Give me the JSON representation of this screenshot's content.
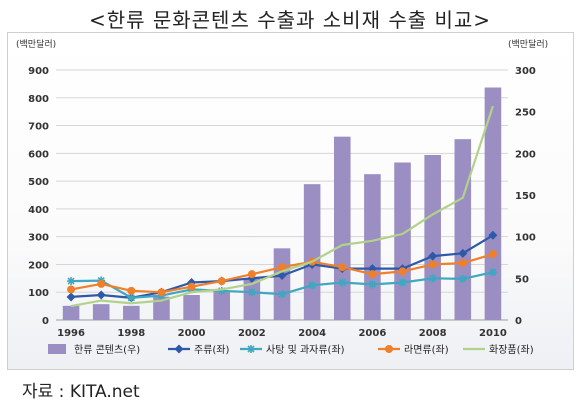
{
  "title": "<한류 문화콘텐츠 수출과 소비재 수출 비교>",
  "source": "자료 : KITA.net",
  "chart_data": {
    "type": "bar+line",
    "left_axis_unit": "(백만달러)",
    "right_axis_unit": "(백만달러)",
    "left_ylim": [
      0,
      900
    ],
    "left_yticks": [
      0,
      100,
      200,
      300,
      400,
      500,
      600,
      700,
      800,
      900
    ],
    "right_ylim": [
      0,
      300
    ],
    "right_yticks": [
      0,
      50,
      100,
      150,
      200,
      250,
      300
    ],
    "x": [
      1996,
      1997,
      1998,
      1999,
      2000,
      2001,
      2002,
      2003,
      2004,
      2005,
      2006,
      2007,
      2008,
      2009,
      2010
    ],
    "x_tick_labels": [
      "1996",
      "1998",
      "2000",
      "2002",
      "2004",
      "2006",
      "2008",
      "2010"
    ],
    "grid": true,
    "legend_position": "bottom",
    "series": [
      {
        "name": "한류 콘텐츠(우)",
        "type": "bar",
        "axis": "right",
        "color": "#9b8ec2",
        "values": [
          17,
          19,
          17,
          28,
          30,
          35,
          50,
          86,
          163,
          220,
          175,
          189,
          198,
          217,
          279
        ]
      },
      {
        "name": "주류(좌)",
        "type": "line",
        "axis": "left",
        "color": "#2e58a8",
        "marker": "diamond",
        "values": [
          83,
          90,
          80,
          100,
          135,
          140,
          150,
          160,
          200,
          185,
          185,
          185,
          230,
          240,
          305
        ]
      },
      {
        "name": "사탕 및 과자류(좌)",
        "type": "line",
        "axis": "left",
        "color": "#3fa7c0",
        "marker": "star",
        "values": [
          140,
          142,
          80,
          88,
          110,
          105,
          100,
          93,
          125,
          135,
          128,
          135,
          150,
          148,
          172
        ]
      },
      {
        "name": "라면류(좌)",
        "type": "line",
        "axis": "left",
        "color": "#f07f2a",
        "marker": "circle",
        "values": [
          110,
          130,
          105,
          100,
          120,
          140,
          165,
          190,
          210,
          190,
          165,
          175,
          200,
          205,
          237
        ]
      },
      {
        "name": "화장품(좌)",
        "type": "line",
        "axis": "left",
        "color": "#b2d28a",
        "marker": "none",
        "values": [
          50,
          70,
          60,
          70,
          100,
          110,
          130,
          175,
          210,
          270,
          285,
          310,
          380,
          440,
          770
        ]
      }
    ]
  }
}
